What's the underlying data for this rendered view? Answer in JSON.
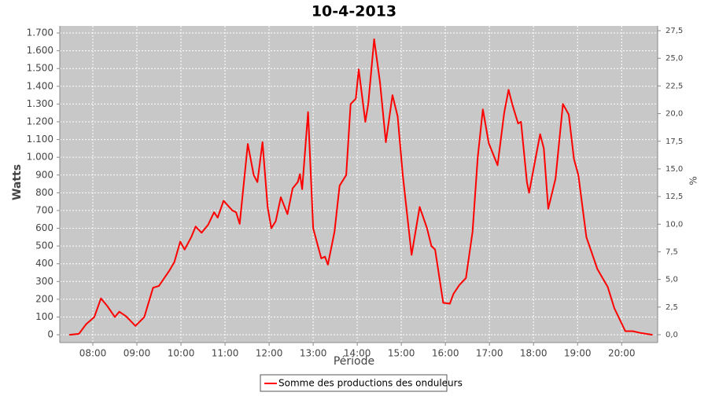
{
  "chart_data": {
    "type": "line",
    "title": "10-4-2013",
    "xlabel": "Période",
    "ylabel": "Watts",
    "y2label": "%",
    "x": [
      "07:28",
      "07:41",
      "07:51",
      "08:02",
      "08:11",
      "08:20",
      "08:30",
      "08:36",
      "08:45",
      "08:58",
      "09:10",
      "09:22",
      "09:30",
      "09:44",
      "09:51",
      "09:59",
      "10:05",
      "10:14",
      "10:20",
      "10:28",
      "10:37",
      "10:45",
      "10:50",
      "10:58",
      "11:10",
      "11:15",
      "11:20",
      "11:31",
      "11:39",
      "11:44",
      "11:51",
      "11:58",
      "12:03",
      "12:09",
      "12:16",
      "12:25",
      "12:32",
      "12:39",
      "12:42",
      "12:45",
      "12:53",
      "13:00",
      "13:11",
      "13:16",
      "13:20",
      "13:29",
      "13:36",
      "13:45",
      "13:51",
      "13:58",
      "14:02",
      "14:11",
      "14:15",
      "14:23",
      "14:31",
      "14:39",
      "14:48",
      "14:55",
      "15:02",
      "15:14",
      "15:25",
      "15:35",
      "15:41",
      "15:46",
      "15:57",
      "16:06",
      "16:11",
      "16:19",
      "16:28",
      "16:37",
      "16:44",
      "16:51",
      "16:59",
      "17:11",
      "17:20",
      "17:26",
      "17:31",
      "17:39",
      "17:43",
      "17:51",
      "17:54",
      "18:03",
      "18:09",
      "18:14",
      "18:20",
      "18:30",
      "18:40",
      "18:48",
      "18:55",
      "19:01",
      "19:12",
      "19:27",
      "19:41",
      "19:50",
      "20:05",
      "20:15",
      "20:26",
      "20:42"
    ],
    "series": [
      {
        "name": "Somme des productions des onduleurs",
        "color": "#ff0000",
        "values": [
          0,
          5,
          60,
          100,
          205,
          160,
          100,
          130,
          105,
          50,
          100,
          265,
          275,
          360,
          410,
          525,
          480,
          550,
          610,
          575,
          620,
          690,
          660,
          755,
          700,
          690,
          625,
          1075,
          900,
          860,
          1085,
          720,
          600,
          640,
          775,
          680,
          825,
          860,
          905,
          820,
          1255,
          600,
          430,
          440,
          395,
          580,
          840,
          900,
          1300,
          1330,
          1495,
          1200,
          1300,
          1665,
          1420,
          1085,
          1350,
          1230,
          900,
          450,
          720,
          600,
          500,
          480,
          180,
          175,
          230,
          280,
          320,
          580,
          1000,
          1270,
          1080,
          955,
          1250,
          1380,
          1300,
          1190,
          1200,
          860,
          800,
          1000,
          1130,
          1050,
          710,
          880,
          1300,
          1240,
          990,
          900,
          550,
          370,
          270,
          150,
          20,
          20,
          10,
          0
        ]
      }
    ],
    "xlim": [
      "07:15",
      "20:49"
    ],
    "xticks": [
      "08:00",
      "09:00",
      "10:00",
      "11:00",
      "12:00",
      "13:00",
      "14:00",
      "15:00",
      "16:00",
      "17:00",
      "18:00",
      "19:00",
      "20:00"
    ],
    "ylim": [
      -44,
      1740
    ],
    "yticks": [
      0,
      100,
      200,
      300,
      400,
      500,
      600,
      700,
      800,
      900,
      {
        "value": 1000,
        "label": "1.000"
      },
      {
        "value": 1100,
        "label": "1.100"
      },
      {
        "value": 1200,
        "label": "1.200"
      },
      {
        "value": 1300,
        "label": "1.300"
      },
      {
        "value": 1400,
        "label": "1.400"
      },
      {
        "value": 1500,
        "label": "1.500"
      },
      {
        "value": 1600,
        "label": "1.600"
      },
      {
        "value": 1700,
        "label": "1.700"
      }
    ],
    "y2lim": [
      -0.71,
      27.93
    ],
    "y2ticks": [
      {
        "value": 0,
        "label": "0,0"
      },
      {
        "value": 2.5,
        "label": "2,5"
      },
      {
        "value": 5,
        "label": "5,0"
      },
      {
        "value": 7.5,
        "label": "7,5"
      },
      {
        "value": 10,
        "label": "10,0"
      },
      {
        "value": 12.5,
        "label": "12,5"
      },
      {
        "value": 15,
        "label": "15,0"
      },
      {
        "value": 17.5,
        "label": "17,5"
      },
      {
        "value": 20,
        "label": "20,0"
      },
      {
        "value": 22.5,
        "label": "22,5"
      },
      {
        "value": 25,
        "label": "25,0"
      },
      {
        "value": 27.5,
        "label": "27,5"
      }
    ],
    "grid": true
  }
}
